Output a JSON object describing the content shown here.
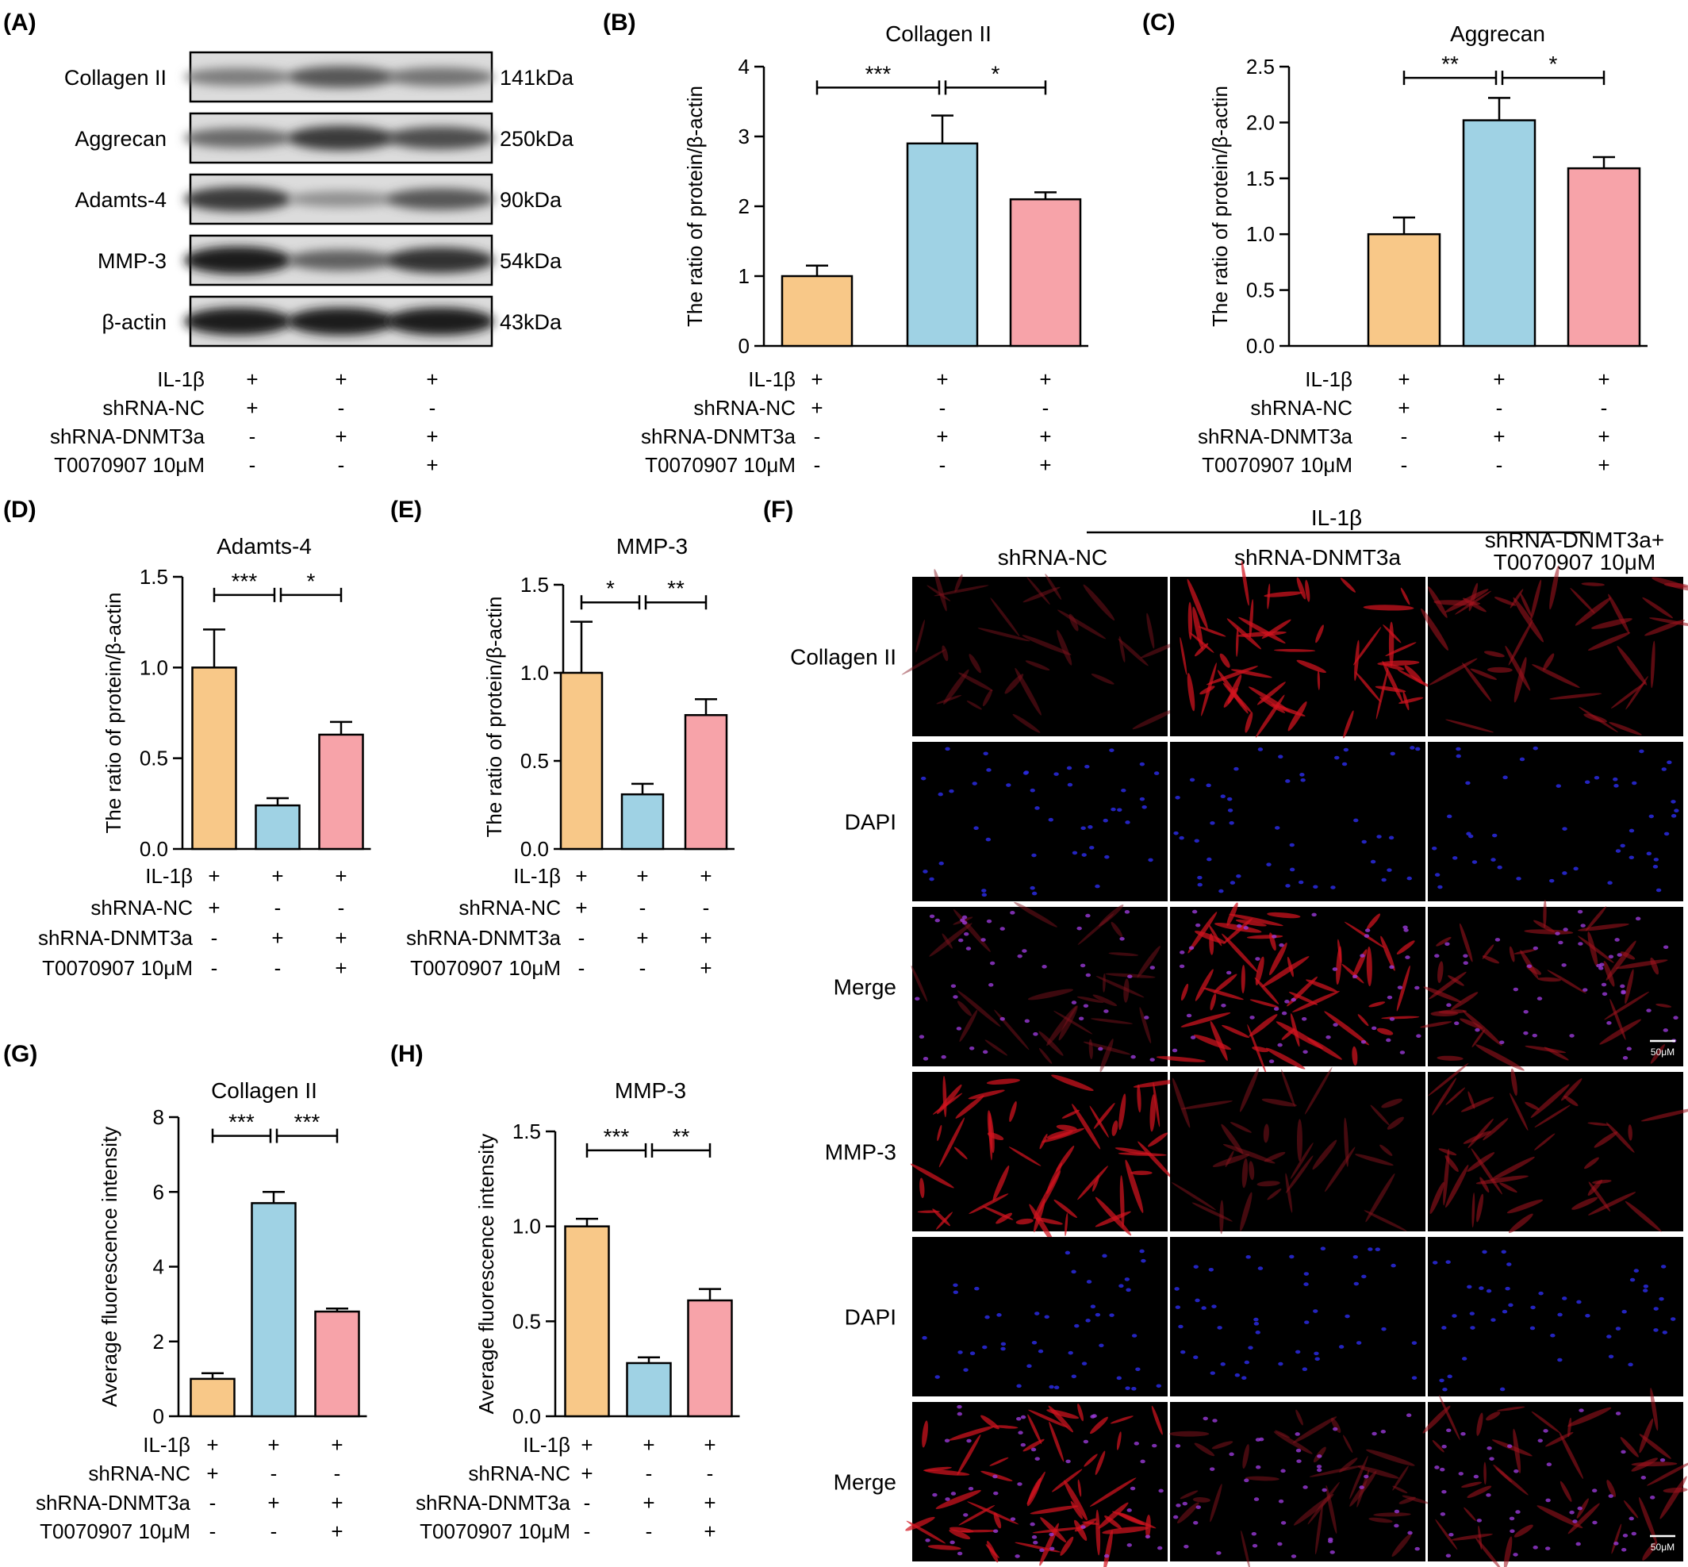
{
  "conditions": {
    "rows": [
      "IL-1β",
      "shRNA-NC",
      "shRNA-DNMT3a",
      "T0070907 10μM"
    ],
    "signs": [
      [
        "+",
        "+",
        "+"
      ],
      [
        "+",
        "-",
        "-"
      ],
      [
        "-",
        "+",
        "+"
      ],
      [
        "-",
        "-",
        "+"
      ]
    ]
  },
  "colors": {
    "group1": "#f8c888",
    "group2": "#9fd2e4",
    "group3": "#f7a3a9"
  },
  "western_blot": {
    "panel_label": "(A)",
    "bands": [
      {
        "name": "Collagen II",
        "size": "141kDa",
        "intensity": [
          0.45,
          0.65,
          0.5
        ]
      },
      {
        "name": "Aggrecan",
        "size": "250kDa",
        "intensity": [
          0.55,
          0.8,
          0.7
        ]
      },
      {
        "name": "Adamts-4",
        "size": "90kDa",
        "intensity": [
          0.8,
          0.35,
          0.65
        ]
      },
      {
        "name": "MMP-3",
        "size": "54kDa",
        "intensity": [
          0.95,
          0.6,
          0.85
        ]
      },
      {
        "name": "β-actin",
        "size": "43kDa",
        "intensity": [
          0.95,
          0.95,
          0.95
        ]
      }
    ]
  },
  "chart_data": [
    {
      "type": "bar",
      "panel": "(B)",
      "title": "Collagen II",
      "ylabel": "The ratio of protein/β-actin",
      "ylim": [
        0,
        4
      ],
      "yticks": [
        "0",
        "1",
        "2",
        "3",
        "4"
      ],
      "values": [
        1.0,
        2.9,
        2.1
      ],
      "errors": [
        0.15,
        0.4,
        0.1
      ],
      "significance": [
        {
          "from": 0,
          "to": 1,
          "label": "***"
        },
        {
          "from": 1,
          "to": 2,
          "label": "*"
        }
      ],
      "sig_y": 3.7
    },
    {
      "type": "bar",
      "panel": "(C)",
      "title": "Aggrecan",
      "ylabel": "The ratio of protein/β-actin",
      "ylim": [
        0,
        2.5
      ],
      "yticks": [
        "0.0",
        "0.5",
        "1.0",
        "1.5",
        "2.0",
        "2.5"
      ],
      "values": [
        1.0,
        2.02,
        1.59
      ],
      "errors": [
        0.15,
        0.2,
        0.1
      ],
      "significance": [
        {
          "from": 0,
          "to": 1,
          "label": "**"
        },
        {
          "from": 1,
          "to": 2,
          "label": "*"
        }
      ],
      "sig_y": 2.4
    },
    {
      "type": "bar",
      "panel": "(D)",
      "title": "Adamts-4",
      "ylabel": "The ratio of protein/β-actin",
      "ylim": [
        0,
        1.5
      ],
      "yticks": [
        "0.0",
        "0.5",
        "1.0",
        "1.5"
      ],
      "values": [
        1.0,
        0.24,
        0.63
      ],
      "errors": [
        0.21,
        0.04,
        0.07
      ],
      "significance": [
        {
          "from": 0,
          "to": 1,
          "label": "***"
        },
        {
          "from": 1,
          "to": 2,
          "label": "*"
        }
      ],
      "sig_y": 1.4
    },
    {
      "type": "bar",
      "panel": "(E)",
      "title": "MMP-3",
      "ylabel": "The ratio of protein/β-actin",
      "ylim": [
        0,
        1.5
      ],
      "yticks": [
        "0.0",
        "0.5",
        "1.0",
        "1.5"
      ],
      "values": [
        1.0,
        0.31,
        0.76
      ],
      "errors": [
        0.29,
        0.06,
        0.09
      ],
      "significance": [
        {
          "from": 0,
          "to": 1,
          "label": "*"
        },
        {
          "from": 1,
          "to": 2,
          "label": "**"
        }
      ],
      "sig_y": 1.4
    },
    {
      "type": "bar",
      "panel": "(G)",
      "title": "Collagen II",
      "ylabel": "Average fluorescence intensity",
      "ylim": [
        0,
        8
      ],
      "yticks": [
        "0",
        "2",
        "4",
        "6",
        "8"
      ],
      "values": [
        1.0,
        5.7,
        2.8
      ],
      "errors": [
        0.15,
        0.3,
        0.08
      ],
      "significance": [
        {
          "from": 0,
          "to": 1,
          "label": "***"
        },
        {
          "from": 1,
          "to": 2,
          "label": "***"
        }
      ],
      "sig_y": 7.5
    },
    {
      "type": "bar",
      "panel": "(H)",
      "title": "MMP-3",
      "ylabel": "Average fluorescence intensity",
      "ylim": [
        0,
        1.5
      ],
      "yticks": [
        "0.0",
        "0.5",
        "1.0",
        "1.5"
      ],
      "values": [
        1.0,
        0.28,
        0.61
      ],
      "errors": [
        0.04,
        0.03,
        0.06
      ],
      "significance": [
        {
          "from": 0,
          "to": 1,
          "label": "***"
        },
        {
          "from": 1,
          "to": 2,
          "label": "**"
        }
      ],
      "sig_y": 1.4
    }
  ],
  "fluorescence": {
    "panel_label": "(F)",
    "header": "IL-1β",
    "columns": [
      [
        "shRNA-NC"
      ],
      [
        "shRNA-DNMT3a"
      ],
      [
        "shRNA-DNMT3a+",
        "T0070907 10μM"
      ]
    ],
    "rows": [
      "Collagen II",
      "DAPI",
      "Merge",
      "MMP-3",
      "DAPI",
      "Merge"
    ],
    "row_types": [
      "red",
      "blue",
      "merge",
      "red",
      "blue",
      "merge"
    ],
    "red_intensity": [
      [
        0.25,
        0.75,
        0.45
      ],
      [
        0.75,
        0.3,
        0.45
      ]
    ],
    "scale_bar": "50μM"
  }
}
